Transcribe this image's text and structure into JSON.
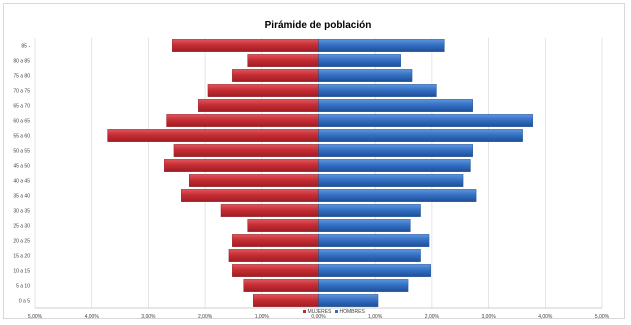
{
  "chart_data": {
    "type": "bar",
    "orientation": "horizontal",
    "title": "Pirámide de población",
    "categories": [
      "85 -",
      "80 a 85",
      "75 a 80",
      "70 a 75",
      "65 a 70",
      "60 a 65",
      "55 a 60",
      "50 a 55",
      "45 a 50",
      "40 a 45",
      "35 a 40",
      "30 a 35",
      "25 a 30",
      "20 a 25",
      "15 a 20",
      "10 a 15",
      "5 a 10",
      "0 a 5"
    ],
    "series": [
      {
        "name": "MUJERES",
        "color": "#c0282f",
        "values": [
          2.58,
          1.25,
          1.52,
          1.95,
          2.12,
          2.68,
          3.72,
          2.55,
          2.72,
          2.28,
          2.42,
          1.72,
          1.25,
          1.52,
          1.58,
          1.52,
          1.32,
          1.15
        ]
      },
      {
        "name": "HOMBRES",
        "color": "#2f6cc0",
        "values": [
          2.22,
          1.45,
          1.65,
          2.08,
          2.72,
          3.78,
          3.6,
          2.72,
          2.68,
          2.55,
          2.78,
          1.8,
          1.62,
          1.95,
          1.8,
          1.98,
          1.58,
          1.05
        ]
      }
    ],
    "x_tick_labels": [
      "5,00%",
      "4,00%",
      "3,00%",
      "2,00%",
      "1,00%",
      "0,00%",
      "1,00%",
      "2,00%",
      "3,00%",
      "4,00%",
      "5,00%"
    ],
    "xlim": [
      -5,
      5
    ],
    "grid": true,
    "legend_position": "bottom"
  }
}
